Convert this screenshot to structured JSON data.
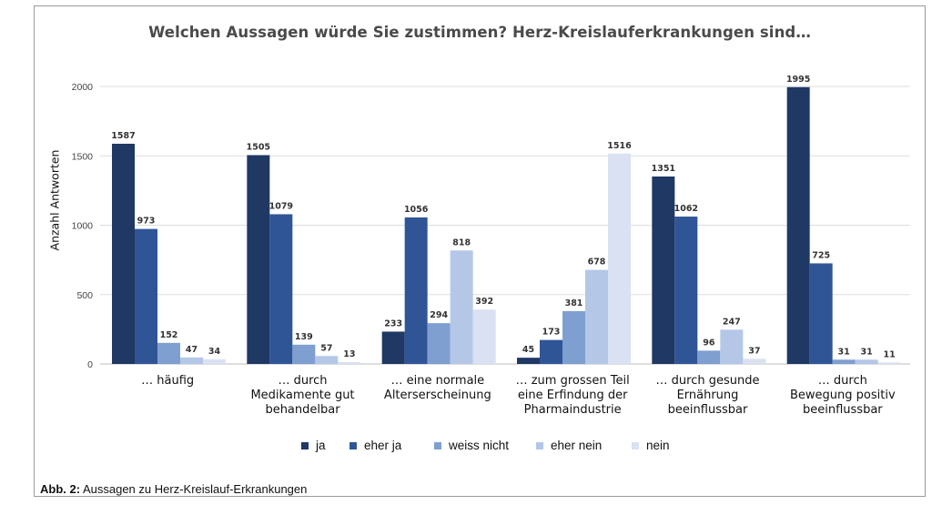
{
  "caption": {
    "label": "Abb. 2:",
    "text": "Aussagen zu Herz-Kreislauf-Erkrankungen"
  },
  "colors": {
    "ja": "#1f3864",
    "eher_ja": "#2f5597",
    "weiss_nicht": "#7f9fd0",
    "eher_nein": "#b4c7e7",
    "nein": "#d9e1f2",
    "grid": "#dddddd",
    "label": "#333333"
  },
  "chart_data": {
    "type": "bar",
    "title": "Welchen Aussagen würde Sie zustimmen? Herz-Kreislauferkrankungen sind…",
    "ylabel": "Anzahl Antworten",
    "xlabel": "",
    "ylim": [
      0,
      2000
    ],
    "yticks": [
      0,
      500,
      1000,
      1500,
      2000
    ],
    "grid": true,
    "legend_position": "bottom",
    "categories": [
      [
        "… häufig"
      ],
      [
        "… durch",
        "Medikamente gut",
        "behandelbar"
      ],
      [
        "… eine normale",
        "Alterserscheinung"
      ],
      [
        "… zum grossen Teil",
        "eine Erfindung der",
        "Pharmaindustrie"
      ],
      [
        "… durch gesunde",
        "Ernährung",
        "beeinflussbar"
      ],
      [
        "… durch",
        "Bewegung positiv",
        "beeinflussbar"
      ]
    ],
    "series": [
      {
        "name": "ja",
        "color": "#1f3864",
        "values": [
          1587,
          1505,
          233,
          45,
          1351,
          1995
        ]
      },
      {
        "name": "eher ja",
        "color": "#2f5597",
        "values": [
          973,
          1079,
          1056,
          173,
          1062,
          725
        ]
      },
      {
        "name": "weiss nicht",
        "color": "#7f9fd0",
        "values": [
          152,
          139,
          294,
          381,
          96,
          31
        ]
      },
      {
        "name": "eher nein",
        "color": "#b4c7e7",
        "values": [
          47,
          57,
          818,
          678,
          247,
          31
        ]
      },
      {
        "name": "nein",
        "color": "#d9e1f2",
        "values": [
          34,
          13,
          392,
          1516,
          37,
          11
        ]
      }
    ]
  }
}
